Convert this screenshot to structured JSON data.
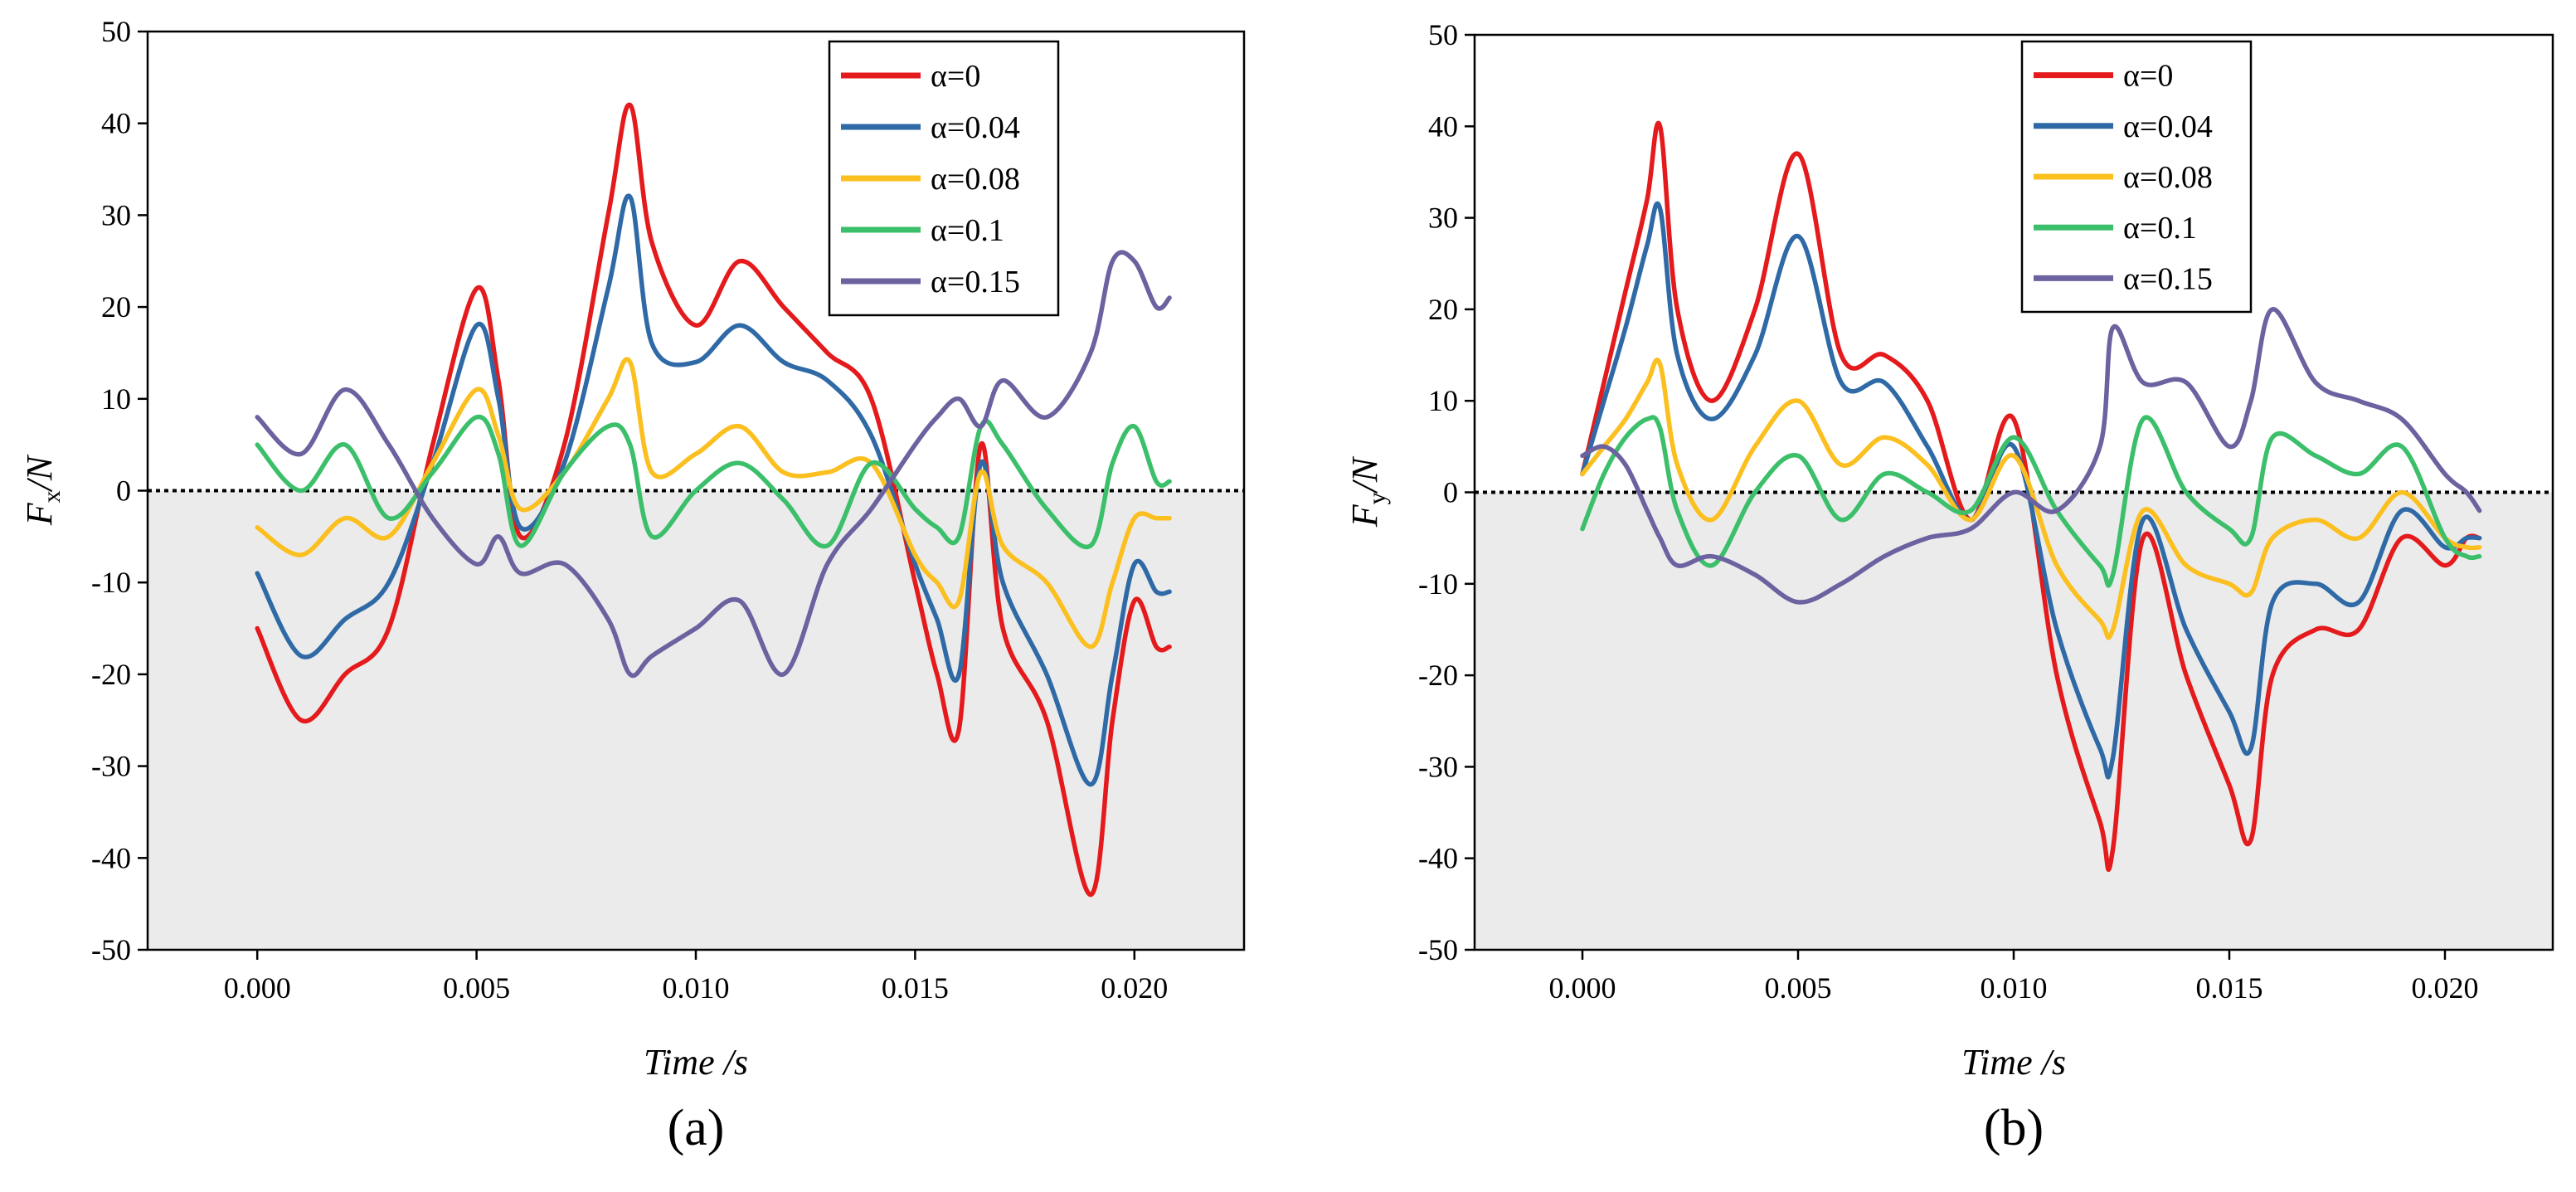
{
  "figure": {
    "panels": [
      "(a)",
      "(b)"
    ]
  },
  "colors": {
    "alpha0": "#e41a1c",
    "alpha004": "#2f6aa6",
    "alpha008": "#fbbf1f",
    "alpha01": "#3cbf6a",
    "alpha015": "#6b62a0",
    "negative_region": "#ebebeb"
  },
  "chart_data": [
    {
      "type": "line",
      "panel_label": "(a)",
      "xlabel": "Time /s",
      "ylabel_main": "F",
      "ylabel_sub": "x",
      "ylabel_unit": "/N",
      "xlim": [
        -0.0025,
        0.0225
      ],
      "ylim": [
        -50,
        50
      ],
      "xticks": [
        "0.000",
        "0.005",
        "0.010",
        "0.015",
        "0.020"
      ],
      "xtick_values": [
        0,
        0.005,
        0.01,
        0.015,
        0.02
      ],
      "yticks": [
        "-50",
        "-40",
        "-30",
        "-20",
        "-10",
        "0",
        "10",
        "20",
        "30",
        "40",
        "50"
      ],
      "ytick_values": [
        -50,
        -40,
        -30,
        -20,
        -10,
        0,
        10,
        20,
        30,
        40,
        50
      ],
      "reference_line": 0,
      "shaded_below_zero": true,
      "legend_position": "top-right",
      "x": [
        0,
        0.001,
        0.002,
        0.003,
        0.004,
        0.005,
        0.0055,
        0.006,
        0.007,
        0.008,
        0.0085,
        0.009,
        0.01,
        0.011,
        0.012,
        0.013,
        0.014,
        0.015,
        0.0155,
        0.016,
        0.0165,
        0.017,
        0.018,
        0.019,
        0.0195,
        0.02,
        0.0205,
        0.0208
      ],
      "series": [
        {
          "name": "α=0",
          "color_key": "alpha0",
          "values": [
            -15,
            -25,
            -20,
            -15,
            5,
            22,
            12,
            -5,
            5,
            30,
            42,
            27,
            18,
            25,
            20,
            15,
            10,
            -10,
            -20,
            -26,
            5,
            -15,
            -25,
            -44,
            -25,
            -12,
            -17,
            -17
          ]
        },
        {
          "name": "α=0.04",
          "color_key": "alpha004",
          "values": [
            -9,
            -18,
            -14,
            -10,
            3,
            18,
            10,
            -4,
            3,
            22,
            32,
            16,
            14,
            18,
            14,
            12,
            6,
            -8,
            -14,
            -20,
            3,
            -10,
            -20,
            -32,
            -20,
            -8,
            -11,
            -11
          ]
        },
        {
          "name": "α=0.08",
          "color_key": "alpha008",
          "values": [
            -4,
            -7,
            -3,
            -5,
            3,
            11,
            6,
            -2,
            2,
            10,
            14,
            2,
            4,
            7,
            2,
            2,
            3,
            -7,
            -10,
            -12,
            2,
            -6,
            -10,
            -17,
            -10,
            -3,
            -3,
            -3
          ]
        },
        {
          "name": "α=0.1",
          "color_key": "alpha01",
          "values": [
            5,
            0,
            5,
            -3,
            2,
            8,
            4,
            -6,
            2,
            7,
            5,
            -5,
            0,
            3,
            -1,
            -6,
            3,
            -2,
            -4,
            -5,
            7,
            5,
            -2,
            -6,
            3,
            7,
            1,
            1
          ]
        },
        {
          "name": "α=0.15",
          "color_key": "alpha015",
          "values": [
            8,
            4,
            11,
            5,
            -3,
            -8,
            -5,
            -9,
            -8,
            -14,
            -20,
            -18,
            -15,
            -12,
            -20,
            -8,
            -2,
            5,
            8,
            10,
            7,
            12,
            8,
            15,
            25,
            25,
            20,
            21
          ]
        }
      ]
    },
    {
      "type": "line",
      "panel_label": "(b)",
      "xlabel": "Time /s",
      "ylabel_main": "F",
      "ylabel_sub": "y",
      "ylabel_unit": "/N",
      "xlim": [
        -0.0025,
        0.0225
      ],
      "ylim": [
        -50,
        50
      ],
      "xticks": [
        "0.000",
        "0.005",
        "0.010",
        "0.015",
        "0.020"
      ],
      "xtick_values": [
        0,
        0.005,
        0.01,
        0.015,
        0.02
      ],
      "yticks": [
        "-50",
        "-40",
        "-30",
        "-20",
        "-10",
        "0",
        "10",
        "20",
        "30",
        "40",
        "50"
      ],
      "ytick_values": [
        -50,
        -40,
        -30,
        -20,
        -10,
        0,
        10,
        20,
        30,
        40,
        50
      ],
      "reference_line": 0,
      "shaded_below_zero": true,
      "legend_position": "top-right",
      "x": [
        0,
        0.0005,
        0.001,
        0.0015,
        0.0018,
        0.0022,
        0.003,
        0.004,
        0.005,
        0.006,
        0.007,
        0.008,
        0.009,
        0.01,
        0.011,
        0.012,
        0.0123,
        0.013,
        0.014,
        0.015,
        0.0155,
        0.016,
        0.017,
        0.018,
        0.019,
        0.02,
        0.0205,
        0.0208
      ],
      "series": [
        {
          "name": "α=0",
          "color_key": "alpha0",
          "values": [
            2,
            12,
            22,
            32,
            40,
            20,
            10,
            20,
            37,
            15,
            15,
            10,
            -3,
            8,
            -20,
            -36,
            -39,
            -5,
            -20,
            -32,
            -38,
            -20,
            -15,
            -15,
            -5,
            -8,
            -5,
            -5
          ]
        },
        {
          "name": "α=0.04",
          "color_key": "alpha004",
          "values": [
            2,
            10,
            18,
            27,
            31,
            15,
            8,
            15,
            28,
            12,
            12,
            5,
            -3,
            5,
            -15,
            -28,
            -29,
            -3,
            -15,
            -24,
            -28,
            -12,
            -10,
            -12,
            -2,
            -6,
            -5,
            -5
          ]
        },
        {
          "name": "α=0.08",
          "color_key": "alpha008",
          "values": [
            2,
            5,
            8,
            12,
            14,
            3,
            -3,
            5,
            10,
            3,
            6,
            3,
            -3,
            4,
            -8,
            -14,
            -15,
            -2,
            -8,
            -10,
            -11,
            -5,
            -3,
            -5,
            0,
            -5,
            -6,
            -6
          ]
        },
        {
          "name": "α=0.1",
          "color_key": "alpha01",
          "values": [
            -4,
            2,
            6,
            8,
            7,
            -2,
            -8,
            0,
            4,
            -3,
            2,
            0,
            -2,
            6,
            -2,
            -8,
            -9,
            8,
            0,
            -4,
            -5,
            6,
            4,
            2,
            5,
            -5,
            -7,
            -7
          ]
        },
        {
          "name": "α=0.15",
          "color_key": "alpha015",
          "values": [
            4,
            5,
            3,
            -2,
            -5,
            -8,
            -7,
            -9,
            -12,
            -10,
            -7,
            -5,
            -4,
            0,
            -2,
            5,
            18,
            12,
            12,
            5,
            10,
            20,
            12,
            10,
            8,
            2,
            0,
            -2
          ]
        }
      ]
    }
  ]
}
